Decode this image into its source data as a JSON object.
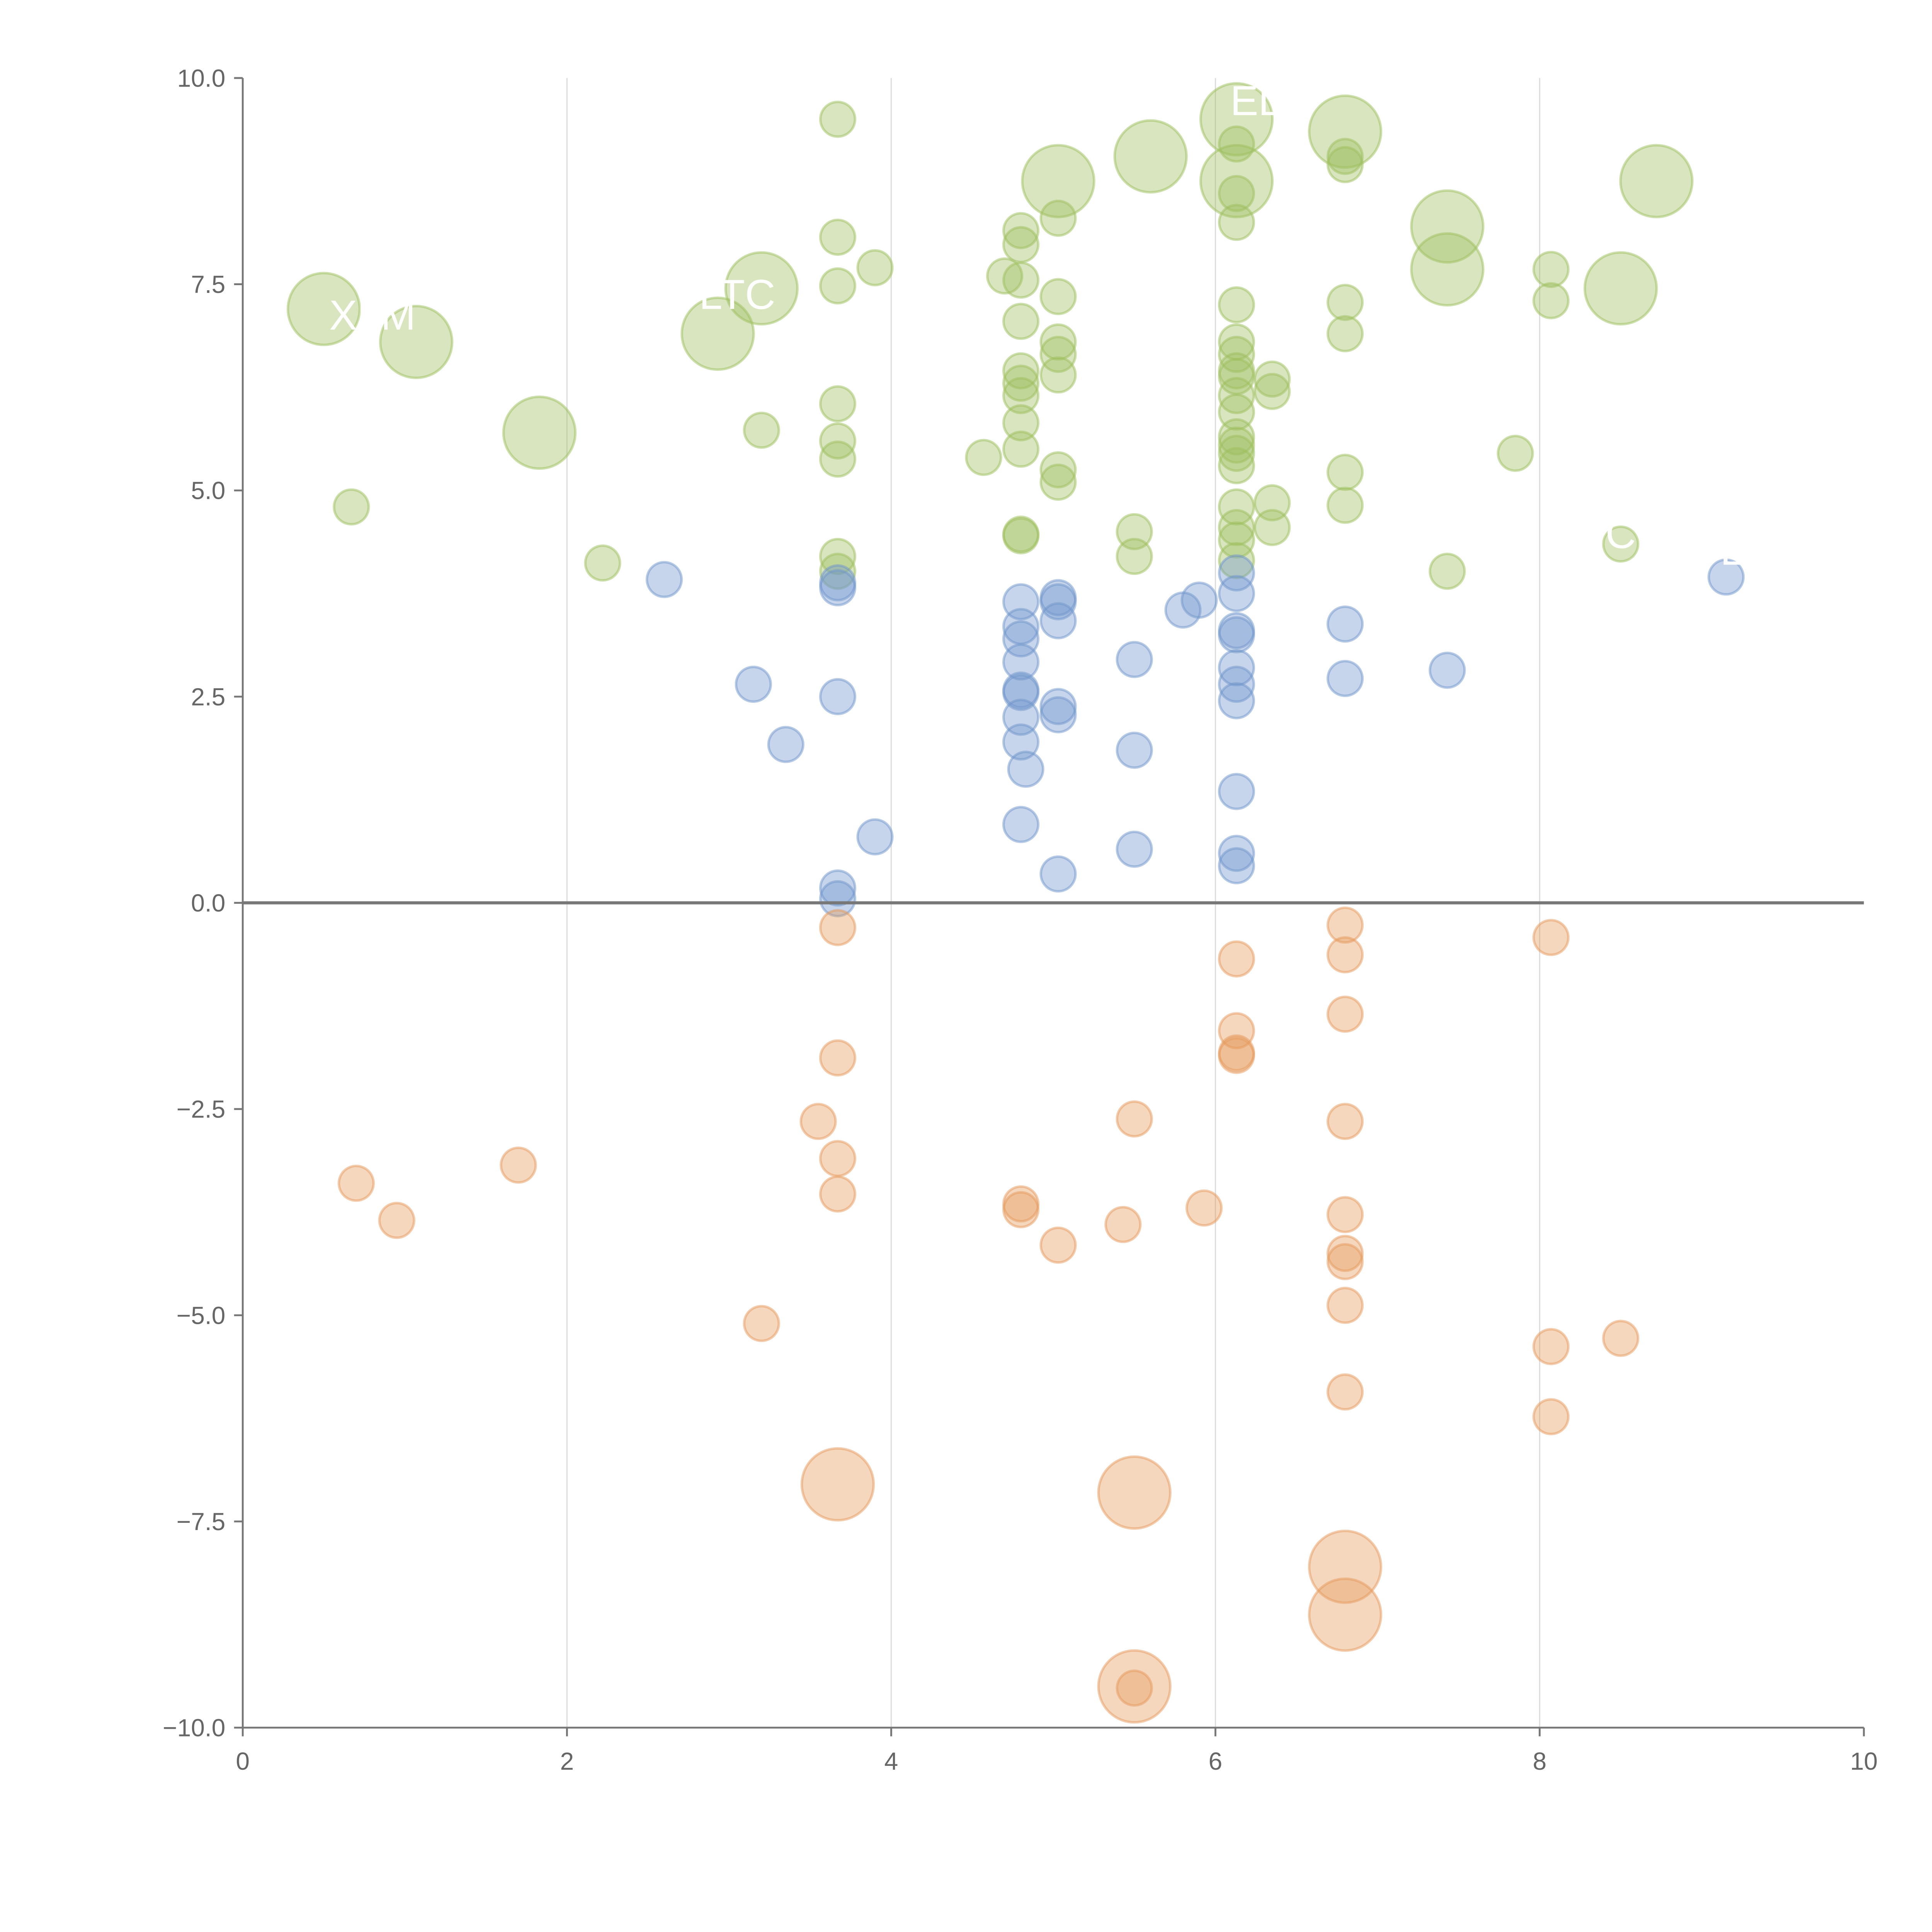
{
  "chart_data": {
    "type": "scatter",
    "title": "",
    "xlabel": "",
    "ylabel": "",
    "xlim": [
      0,
      10
    ],
    "ylim": [
      -10,
      10
    ],
    "x_ticks": [
      "0",
      "2",
      "4",
      "6",
      "8",
      "10"
    ],
    "y_ticks": [
      "10.0",
      "7.5",
      "5.0",
      "2.5",
      "0.0",
      "−2.5",
      "−5.0",
      "−7.5",
      "−10.0"
    ],
    "grid": "vertical",
    "zero_line": true,
    "colors": {
      "green": "#9dbf5e",
      "blue": "#7096cc",
      "orange": "#e59a5c"
    },
    "series": [
      {
        "name": "green",
        "color": "#9dbf5e",
        "points": [
          [
            0.5,
            7.2,
            3
          ],
          [
            1.07,
            6.8,
            3
          ],
          [
            1.83,
            5.7,
            3
          ],
          [
            2.93,
            6.9,
            3
          ],
          [
            3.2,
            7.45,
            3
          ],
          [
            5.03,
            8.75,
            3
          ],
          [
            5.6,
            9.05,
            3
          ],
          [
            6.13,
            9.5,
            3
          ],
          [
            6.13,
            8.75,
            3
          ],
          [
            6.8,
            9.35,
            3
          ],
          [
            7.43,
            8.2,
            3
          ],
          [
            7.43,
            7.68,
            3
          ],
          [
            8.5,
            7.45,
            3
          ],
          [
            8.72,
            8.75,
            3
          ],
          [
            0.67,
            4.8,
            1
          ],
          [
            2.22,
            4.12,
            1
          ],
          [
            3.2,
            5.73,
            1
          ],
          [
            3.67,
            9.5,
            1
          ],
          [
            3.67,
            8.07,
            1
          ],
          [
            3.67,
            7.48,
            1
          ],
          [
            3.9,
            7.7,
            1
          ],
          [
            3.67,
            6.05,
            1
          ],
          [
            3.67,
            5.6,
            1
          ],
          [
            3.67,
            5.38,
            1
          ],
          [
            3.67,
            4.2,
            1
          ],
          [
            3.67,
            4.02,
            1
          ],
          [
            4.57,
            5.4,
            1
          ],
          [
            4.7,
            7.6,
            1
          ],
          [
            4.8,
            8.15,
            1
          ],
          [
            4.8,
            7.98,
            1
          ],
          [
            4.8,
            7.55,
            1
          ],
          [
            4.8,
            7.05,
            1
          ],
          [
            4.8,
            6.45,
            1
          ],
          [
            4.8,
            6.3,
            1
          ],
          [
            4.8,
            6.15,
            1
          ],
          [
            4.8,
            5.82,
            1
          ],
          [
            4.8,
            5.5,
            1
          ],
          [
            4.8,
            4.47,
            1
          ],
          [
            4.8,
            4.45,
            1
          ],
          [
            5.03,
            8.3,
            1
          ],
          [
            5.03,
            7.35,
            1
          ],
          [
            5.03,
            6.8,
            1
          ],
          [
            5.03,
            6.65,
            1
          ],
          [
            5.03,
            6.4,
            1
          ],
          [
            5.03,
            5.25,
            1
          ],
          [
            5.03,
            5.1,
            1
          ],
          [
            5.5,
            4.5,
            1
          ],
          [
            5.5,
            4.2,
            1
          ],
          [
            6.13,
            9.2,
            1
          ],
          [
            6.13,
            8.6,
            1
          ],
          [
            6.13,
            8.25,
            1
          ],
          [
            6.13,
            7.25,
            1
          ],
          [
            6.13,
            6.8,
            1
          ],
          [
            6.13,
            6.65,
            1
          ],
          [
            6.13,
            6.45,
            1
          ],
          [
            6.13,
            6.38,
            1
          ],
          [
            6.13,
            6.15,
            1
          ],
          [
            6.13,
            5.95,
            1
          ],
          [
            6.13,
            5.65,
            1
          ],
          [
            6.13,
            5.55,
            1
          ],
          [
            6.13,
            5.45,
            1
          ],
          [
            6.13,
            5.3,
            1
          ],
          [
            6.13,
            4.8,
            1
          ],
          [
            6.13,
            4.55,
            1
          ],
          [
            6.13,
            4.4,
            1
          ],
          [
            6.13,
            4.15,
            1
          ],
          [
            6.35,
            6.35,
            1
          ],
          [
            6.35,
            6.2,
            1
          ],
          [
            6.35,
            4.85,
            1
          ],
          [
            6.35,
            4.55,
            1
          ],
          [
            6.8,
            9.05,
            1
          ],
          [
            6.8,
            8.95,
            1
          ],
          [
            6.8,
            7.28,
            1
          ],
          [
            6.8,
            6.9,
            1
          ],
          [
            6.8,
            5.22,
            1
          ],
          [
            6.8,
            4.82,
            1
          ],
          [
            7.43,
            4.02,
            1
          ],
          [
            7.85,
            5.45,
            1
          ],
          [
            8.07,
            7.68,
            1
          ],
          [
            8.07,
            7.3,
            1
          ],
          [
            8.5,
            4.35,
            1
          ]
        ]
      },
      {
        "name": "blue",
        "color": "#7096cc",
        "points": [
          [
            2.6,
            3.92,
            1
          ],
          [
            3.15,
            2.65,
            1
          ],
          [
            3.35,
            1.92,
            1
          ],
          [
            3.67,
            3.88,
            1
          ],
          [
            3.67,
            3.82,
            1
          ],
          [
            3.67,
            2.5,
            1
          ],
          [
            3.67,
            0.18,
            1
          ],
          [
            3.67,
            0.05,
            1
          ],
          [
            3.9,
            0.8,
            1
          ],
          [
            4.8,
            3.65,
            1
          ],
          [
            4.8,
            3.35,
            1
          ],
          [
            4.8,
            3.2,
            1
          ],
          [
            4.8,
            2.92,
            1
          ],
          [
            4.8,
            2.58,
            1
          ],
          [
            4.8,
            2.55,
            1
          ],
          [
            4.8,
            2.25,
            1
          ],
          [
            4.8,
            1.95,
            1
          ],
          [
            4.83,
            1.62,
            1
          ],
          [
            4.8,
            0.95,
            1
          ],
          [
            5.03,
            3.7,
            1
          ],
          [
            5.03,
            3.65,
            1
          ],
          [
            5.03,
            3.42,
            1
          ],
          [
            5.03,
            2.38,
            1
          ],
          [
            5.03,
            2.28,
            1
          ],
          [
            5.03,
            0.35,
            1
          ],
          [
            5.5,
            2.95,
            1
          ],
          [
            5.5,
            1.85,
            1
          ],
          [
            5.5,
            0.65,
            1
          ],
          [
            5.8,
            3.55,
            1
          ],
          [
            5.9,
            3.67,
            1
          ],
          [
            6.13,
            4.0,
            1
          ],
          [
            6.13,
            3.75,
            1
          ],
          [
            6.13,
            3.3,
            1
          ],
          [
            6.13,
            3.25,
            1
          ],
          [
            6.13,
            2.85,
            1
          ],
          [
            6.13,
            2.65,
            1
          ],
          [
            6.13,
            2.45,
            1
          ],
          [
            6.13,
            1.35,
            1
          ],
          [
            6.13,
            0.6,
            1
          ],
          [
            6.13,
            0.45,
            1
          ],
          [
            6.8,
            3.38,
            1
          ],
          [
            6.8,
            2.72,
            1
          ],
          [
            7.43,
            2.82,
            1
          ],
          [
            9.15,
            3.95,
            1
          ]
        ]
      },
      {
        "name": "orange",
        "color": "#e59a5c",
        "points": [
          [
            3.67,
            -7.05,
            3
          ],
          [
            5.5,
            -7.15,
            3
          ],
          [
            6.8,
            -8.05,
            3
          ],
          [
            6.8,
            -8.63,
            3
          ],
          [
            5.5,
            -9.5,
            3
          ],
          [
            0.7,
            -3.4,
            1
          ],
          [
            0.95,
            -3.85,
            1
          ],
          [
            1.7,
            -3.18,
            1
          ],
          [
            3.2,
            -5.1,
            1
          ],
          [
            3.55,
            -2.65,
            1
          ],
          [
            3.67,
            -0.3,
            1
          ],
          [
            3.67,
            -1.88,
            1
          ],
          [
            3.67,
            -3.1,
            1
          ],
          [
            3.67,
            -3.53,
            1
          ],
          [
            4.8,
            -3.65,
            1
          ],
          [
            4.8,
            -3.72,
            1
          ],
          [
            5.03,
            -4.15,
            1
          ],
          [
            5.43,
            -3.9,
            1
          ],
          [
            5.5,
            -2.62,
            1
          ],
          [
            5.93,
            -3.7,
            1
          ],
          [
            6.13,
            -0.68,
            1
          ],
          [
            6.13,
            -1.55,
            1
          ],
          [
            6.13,
            -1.82,
            1
          ],
          [
            6.13,
            -1.85,
            1
          ],
          [
            6.8,
            -0.27,
            1
          ],
          [
            6.8,
            -0.63,
            1
          ],
          [
            6.8,
            -1.35,
            1
          ],
          [
            6.8,
            -2.65,
            1
          ],
          [
            6.8,
            -3.78,
            1
          ],
          [
            6.8,
            -4.25,
            1
          ],
          [
            6.8,
            -4.35,
            1
          ],
          [
            6.8,
            -4.88,
            1
          ],
          [
            6.8,
            -5.93,
            1
          ],
          [
            8.07,
            -0.42,
            1
          ],
          [
            8.07,
            -5.38,
            1
          ],
          [
            8.07,
            -6.23,
            1
          ],
          [
            8.5,
            -5.28,
            1
          ],
          [
            5.5,
            -9.52,
            1
          ]
        ]
      }
    ],
    "annotations": [
      {
        "text": "XLM",
        "x": 0.8,
        "y": 6.95
      },
      {
        "text": "LTC",
        "x": 3.05,
        "y": 7.2
      },
      {
        "text": "EL",
        "x": 6.25,
        "y": 9.55
      },
      {
        "text": "C",
        "x": 8.5,
        "y": 4.3
      },
      {
        "text": "E",
        "x": 9.2,
        "y": 4.1
      }
    ]
  }
}
